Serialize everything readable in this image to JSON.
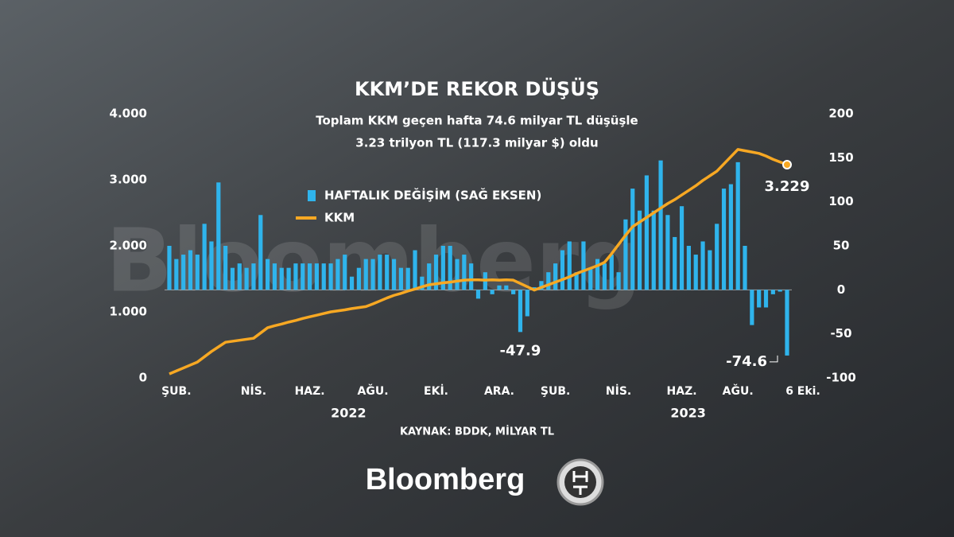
{
  "chart_data": {
    "type": "bar-line",
    "title": "KKM’DE REKOR DÜŞÜŞ",
    "subtitle": [
      "Toplam KKM geçen hafta 74.6 milyar TL düşüşle",
      "3.23 trilyon TL (117.3 milyar $) oldu"
    ],
    "source": "KAYNAK: BDDK, MİLYAR TL",
    "brand": "Bloomberg",
    "watermark": "Bloomberg",
    "categories": [
      null,
      "ŞUB.",
      null,
      null,
      null,
      null,
      null,
      null,
      null,
      null,
      null,
      null,
      "NİS.",
      null,
      null,
      null,
      null,
      null,
      null,
      null,
      "HAZ.",
      null,
      null,
      null,
      null,
      null,
      null,
      null,
      null,
      "AĞU.",
      null,
      null,
      null,
      null,
      null,
      null,
      null,
      null,
      "EKİ.",
      null,
      null,
      null,
      null,
      null,
      null,
      null,
      null,
      "ARA.",
      null,
      null,
      null,
      null,
      null,
      null,
      null,
      "ŞUB.",
      null,
      null,
      null,
      null,
      null,
      null,
      null,
      null,
      "NİS.",
      null,
      null,
      null,
      null,
      null,
      null,
      null,
      null,
      "HAZ.",
      null,
      null,
      null,
      null,
      null,
      null,
      null,
      "AĞU.",
      null,
      null,
      null,
      null,
      null,
      null,
      "6 Eki."
    ],
    "x_group_labels": [
      "2022",
      "2023"
    ],
    "series": [
      {
        "name": "HAFTALIK DEĞİŞİM (SAĞ EKSEN)",
        "type": "bar",
        "axis": "y2",
        "color": "#2fb4ec",
        "values": [
          50,
          35,
          40,
          45,
          40,
          75,
          55,
          122,
          50,
          25,
          30,
          25,
          30,
          85,
          35,
          30,
          25,
          25,
          30,
          30,
          30,
          30,
          30,
          30,
          35,
          40,
          15,
          25,
          35,
          35,
          40,
          40,
          35,
          25,
          25,
          45,
          15,
          30,
          40,
          50,
          50,
          35,
          40,
          30,
          -10,
          20,
          -5,
          5,
          5,
          -5,
          -47.9,
          -30,
          3,
          10,
          20,
          30,
          45,
          55,
          20,
          55,
          25,
          35,
          30,
          40,
          20,
          80,
          115,
          90,
          130,
          90,
          147,
          85,
          60,
          95,
          50,
          40,
          55,
          45,
          75,
          115,
          120,
          145,
          50,
          -40,
          -20,
          -20,
          -5,
          -2,
          -74.6
        ],
        "value_labels": [
          null,
          null,
          null,
          null,
          null,
          null,
          null,
          null,
          null,
          null,
          null,
          null,
          null,
          null,
          null,
          null,
          null,
          null,
          null,
          null,
          null,
          null,
          null,
          null,
          null,
          null,
          null,
          null,
          null,
          null,
          null,
          null,
          null,
          null,
          null,
          null,
          null,
          null,
          null,
          null,
          null,
          null,
          null,
          null,
          null,
          null,
          null,
          null,
          null,
          null,
          "-47.9",
          null,
          null,
          null,
          null,
          null,
          null,
          null,
          null,
          null,
          null,
          null,
          null,
          null,
          null,
          null,
          null,
          null,
          null,
          null,
          null,
          null,
          null,
          null,
          null,
          null,
          null,
          null,
          null,
          null,
          null,
          null,
          null,
          null,
          null,
          null,
          null,
          null,
          "-74.6"
        ]
      },
      {
        "name": "KKM",
        "type": "line",
        "color": "#f7a823",
        "values": [
          60,
          105,
          150,
          195,
          240,
          320,
          400,
          470,
          540,
          555,
          570,
          585,
          600,
          680,
          760,
          790,
          815,
          845,
          870,
          900,
          925,
          950,
          975,
          1000,
          1015,
          1030,
          1050,
          1065,
          1080,
          1120,
          1165,
          1210,
          1250,
          1280,
          1315,
          1345,
          1380,
          1410,
          1425,
          1440,
          1450,
          1465,
          1480,
          1485,
          1485,
          1480,
          1485,
          1480,
          1485,
          1480,
          1430,
          1380,
          1330,
          1370,
          1410,
          1450,
          1490,
          1530,
          1580,
          1620,
          1660,
          1700,
          1750,
          1880,
          2020,
          2160,
          2290,
          2360,
          2430,
          2500,
          2570,
          2640,
          2700,
          2770,
          2840,
          2910,
          2990,
          3060,
          3130,
          3240,
          3350,
          3460,
          3440,
          3420,
          3400,
          3360,
          3310,
          3270,
          3229
        ],
        "value_labels": [
          null,
          null,
          null,
          null,
          null,
          null,
          null,
          null,
          null,
          null,
          null,
          null,
          null,
          null,
          null,
          null,
          null,
          null,
          null,
          null,
          null,
          null,
          null,
          null,
          null,
          null,
          null,
          null,
          null,
          null,
          null,
          null,
          null,
          null,
          null,
          null,
          null,
          null,
          null,
          null,
          null,
          null,
          null,
          null,
          null,
          null,
          null,
          null,
          null,
          null,
          null,
          null,
          null,
          null,
          null,
          null,
          null,
          null,
          null,
          null,
          null,
          null,
          null,
          null,
          null,
          null,
          null,
          null,
          null,
          null,
          null,
          null,
          null,
          null,
          null,
          null,
          null,
          null,
          null,
          null,
          null,
          null,
          null,
          null,
          null,
          null,
          null,
          null,
          "3.229"
        ]
      }
    ],
    "ylim": [
      0,
      4000
    ],
    "yticks": [
      {
        "value": 0,
        "label": "0"
      },
      {
        "value": 1000,
        "label": "1.000"
      },
      {
        "value": 2000,
        "label": "2.000"
      },
      {
        "value": 3000,
        "label": "3.000"
      },
      {
        "value": 4000,
        "label": "4.000"
      }
    ],
    "y2lim": [
      -100,
      200
    ],
    "y2ticks": [
      -100,
      -50,
      0,
      50,
      100,
      150,
      200
    ],
    "legend": "top-left"
  }
}
